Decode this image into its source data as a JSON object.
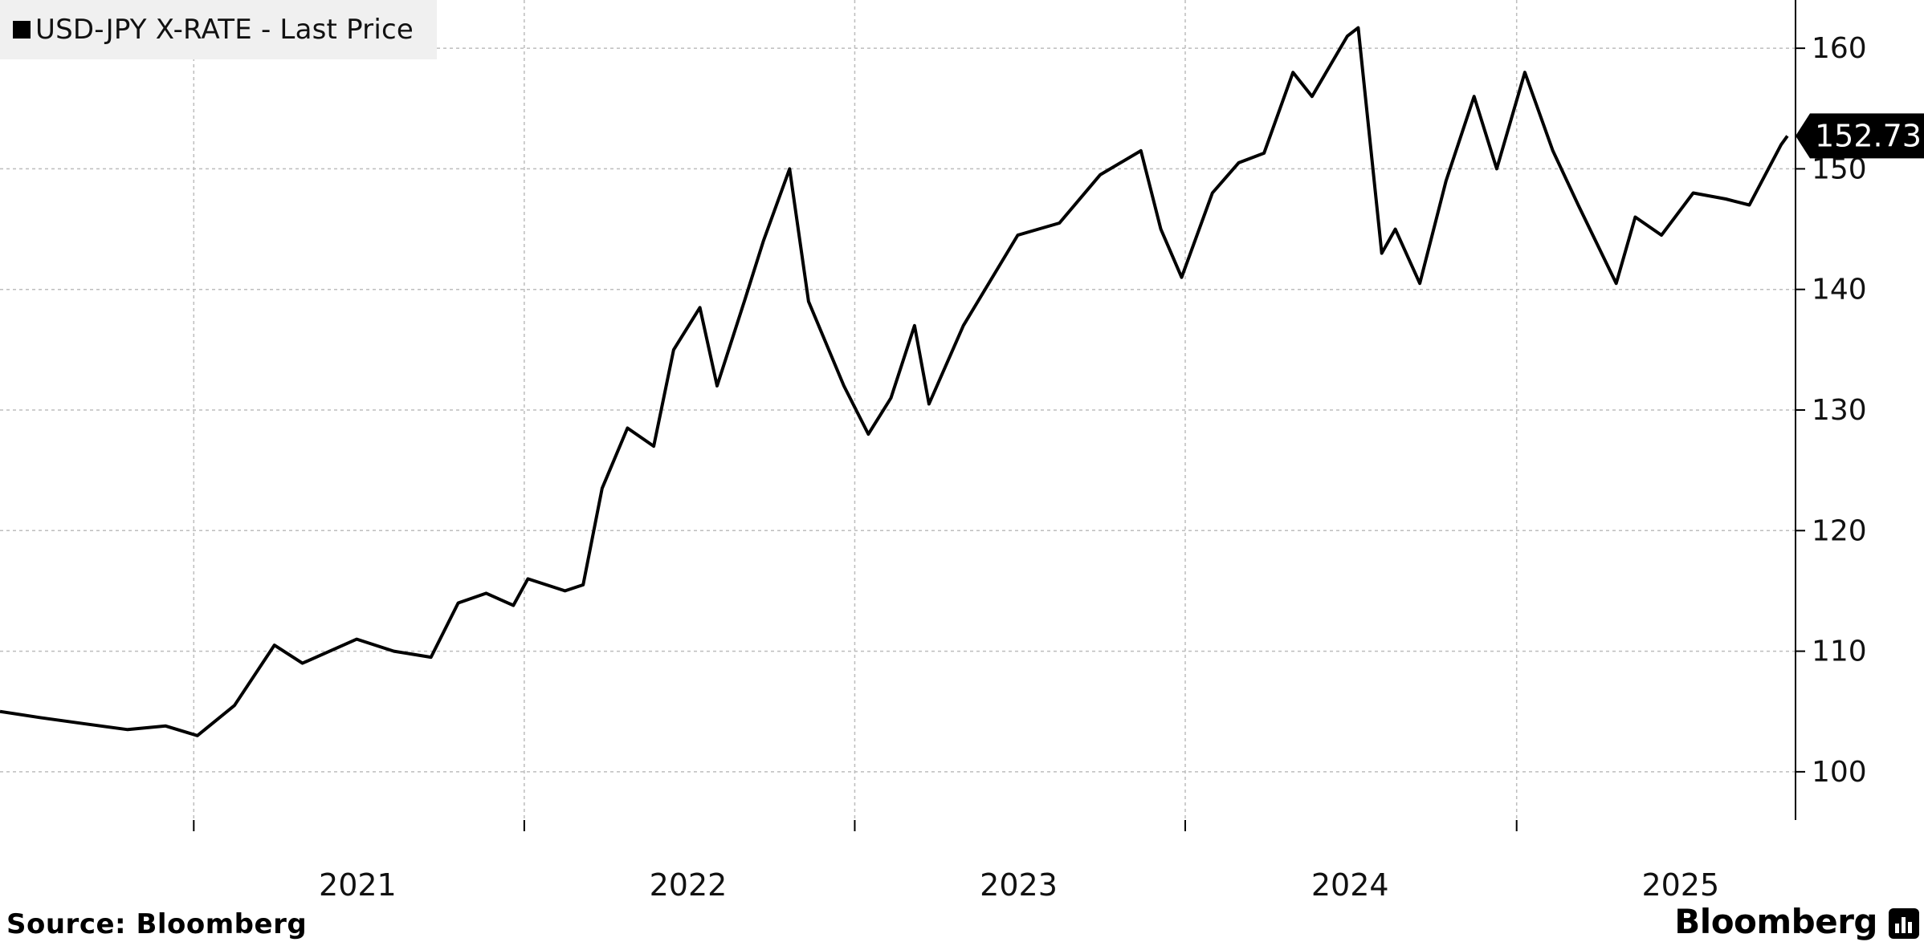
{
  "legend": {
    "label": "USD-JPY X-RATE - Last Price",
    "swatch_color": "#000000"
  },
  "footer": {
    "source": "Source: Bloomberg",
    "brand": "Bloomberg",
    "brand_icon": "bloomberg-terminal-icon"
  },
  "chart_data": {
    "type": "line",
    "title": "",
    "xlabel": "",
    "ylabel": "",
    "series": [
      {
        "name": "USD-JPY X-RATE - Last Price",
        "color": "#000000",
        "x": [
          "2020-06-01",
          "2020-07-15",
          "2020-09-01",
          "2020-10-20",
          "2020-12-01",
          "2021-01-05",
          "2021-02-15",
          "2021-03-31",
          "2021-05-01",
          "2021-06-30",
          "2021-08-10",
          "2021-09-20",
          "2021-10-20",
          "2021-11-20",
          "2021-12-20",
          "2022-01-05",
          "2022-02-15",
          "2022-03-07",
          "2022-03-28",
          "2022-04-25",
          "2022-05-24",
          "2022-06-15",
          "2022-07-14",
          "2022-08-02",
          "2022-09-01",
          "2022-09-22",
          "2022-10-21",
          "2022-11-11",
          "2022-12-20",
          "2023-01-16",
          "2023-02-10",
          "2023-03-08",
          "2023-03-24",
          "2023-05-01",
          "2023-06-30",
          "2023-08-15",
          "2023-09-29",
          "2023-11-13",
          "2023-12-05",
          "2023-12-28",
          "2024-01-31",
          "2024-02-29",
          "2024-03-28",
          "2024-04-29",
          "2024-05-20",
          "2024-06-28",
          "2024-07-10",
          "2024-08-05",
          "2024-08-20",
          "2024-09-16",
          "2024-10-15",
          "2024-11-15",
          "2024-12-10",
          "2025-01-10",
          "2025-02-10",
          "2025-03-10",
          "2025-04-21",
          "2025-05-12",
          "2025-06-10",
          "2025-07-15",
          "2025-08-20",
          "2025-09-15",
          "2025-10-06",
          "2025-10-20",
          "2025-10-27"
        ],
        "y": [
          105.0,
          104.5,
          104.0,
          103.5,
          103.8,
          103.0,
          105.5,
          110.5,
          109.0,
          111.0,
          110.0,
          109.5,
          114.0,
          114.8,
          113.8,
          116.0,
          115.0,
          115.5,
          123.5,
          128.5,
          127.0,
          135.0,
          138.5,
          132.0,
          139.0,
          144.0,
          150.0,
          139.0,
          132.0,
          128.0,
          131.0,
          137.0,
          130.5,
          137.0,
          144.5,
          145.5,
          149.5,
          151.5,
          145.0,
          141.0,
          148.0,
          150.5,
          151.3,
          158.0,
          156.0,
          161.0,
          161.7,
          143.0,
          145.0,
          140.5,
          149.0,
          156.0,
          150.0,
          158.0,
          151.5,
          147.0,
          140.5,
          146.0,
          144.5,
          148.0,
          147.5,
          147.0,
          150.0,
          152.0,
          152.73
        ]
      }
    ],
    "ylim": [
      96,
      164
    ],
    "yticks": [
      100,
      110,
      120,
      130,
      140,
      150,
      160
    ],
    "xticks": [
      "2021",
      "2022",
      "2023",
      "2024",
      "2025"
    ],
    "x_range": [
      "2020-06-01",
      "2025-11-05"
    ],
    "last_value_label": "152.73",
    "grid": true,
    "legend_position": "top-left"
  }
}
